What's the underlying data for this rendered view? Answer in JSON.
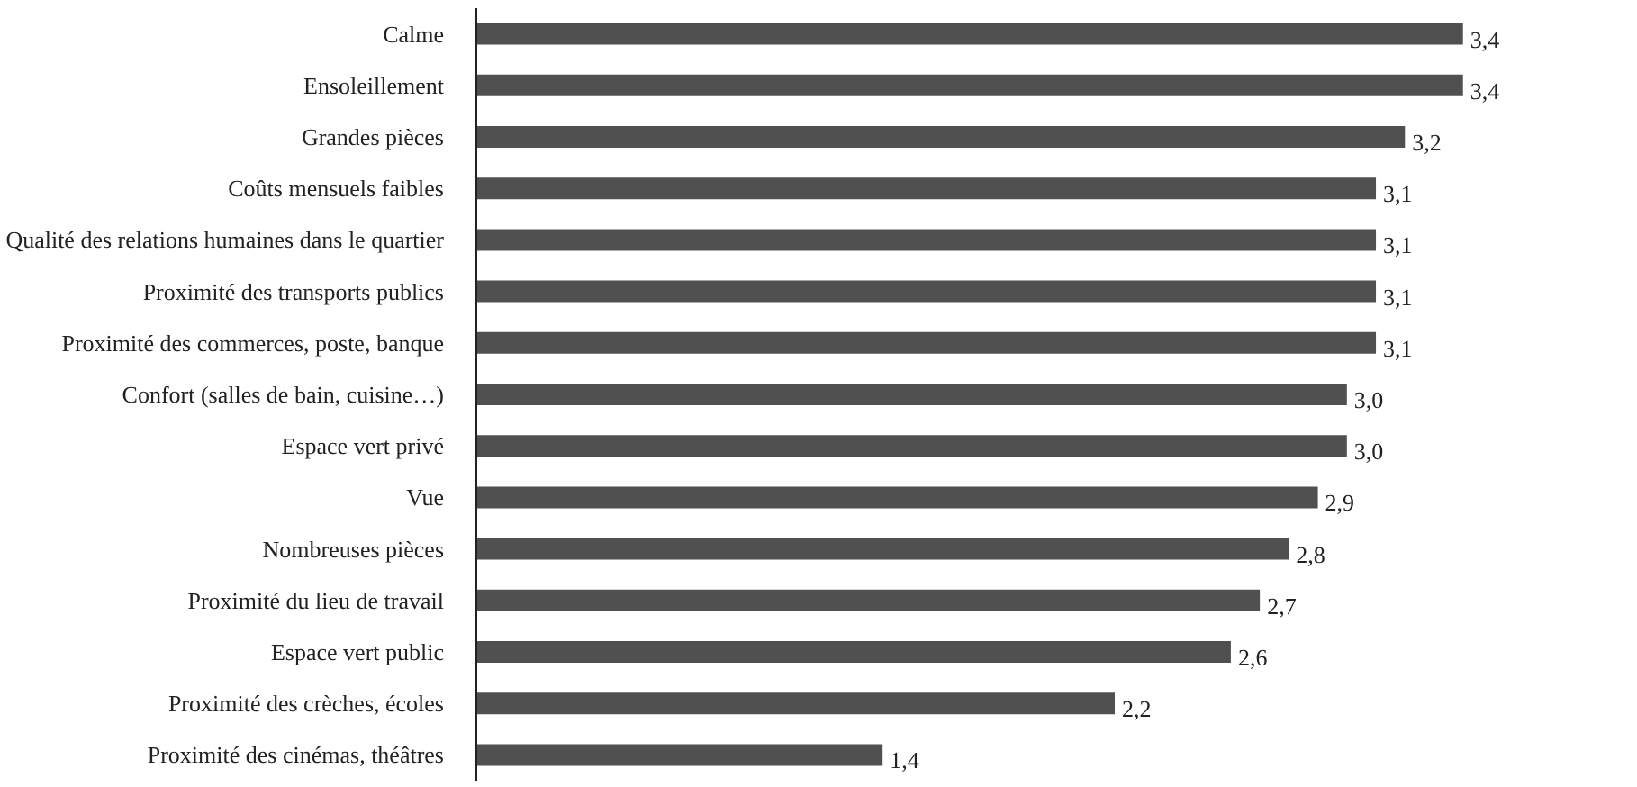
{
  "chart_data": {
    "type": "bar",
    "orientation": "horizontal",
    "categories": [
      "Calme",
      "Ensoleillement",
      "Grandes pièces",
      "Coûts mensuels faibles",
      "Qualité des relations humaines dans le quartier",
      "Proximité des transports publics",
      "Proximité des commerces, poste, banque",
      "Confort (salles de bain, cuisine…)",
      "Espace vert privé",
      "Vue",
      "Nombreuses pièces",
      "Proximité du lieu de travail",
      "Espace vert public",
      "Proximité des crèches, écoles",
      "Proximité des cinémas, théâtres"
    ],
    "values": [
      3.4,
      3.4,
      3.2,
      3.1,
      3.1,
      3.1,
      3.1,
      3.0,
      3.0,
      2.9,
      2.8,
      2.7,
      2.6,
      2.2,
      1.4
    ],
    "value_labels": [
      "3,4",
      "3,4",
      "3,2",
      "3,1",
      "3,1",
      "3,1",
      "3,1",
      "3,0",
      "3,0",
      "2,9",
      "2,8",
      "2,7",
      "2,6",
      "2,2",
      "1,4"
    ],
    "color": "#505050",
    "tick_labels": "y"
  }
}
